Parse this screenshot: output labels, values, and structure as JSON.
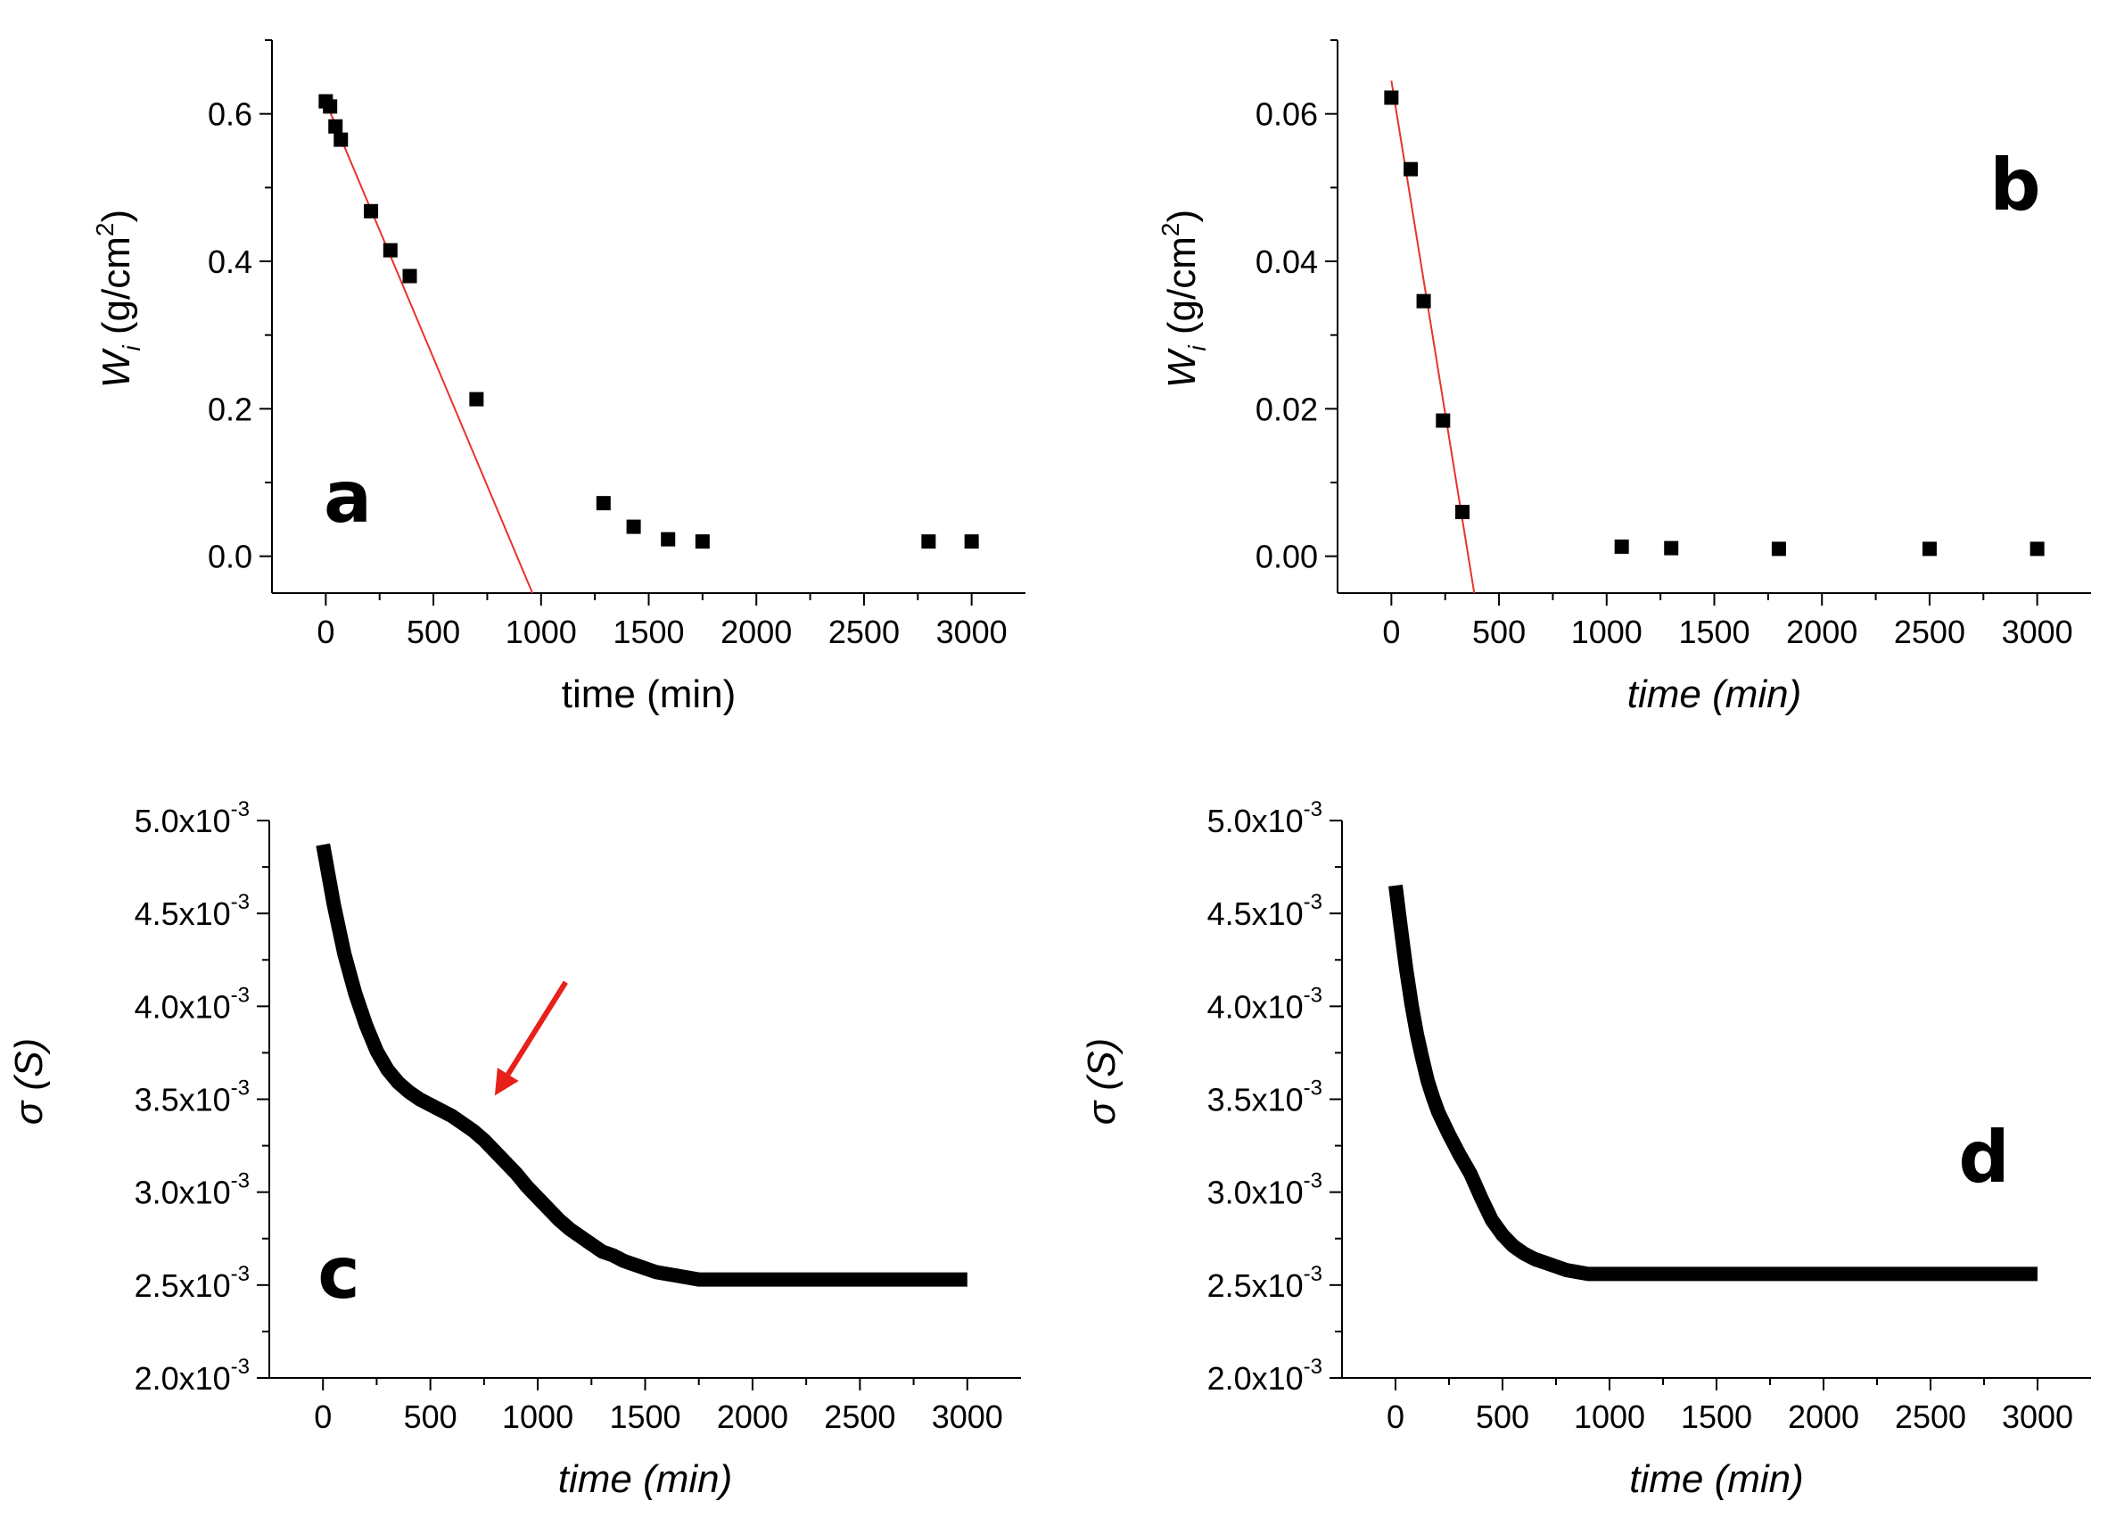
{
  "chart_data": [
    {
      "id": "a",
      "type": "scatter",
      "panel_label": "a",
      "xlabel": "time (min)",
      "ylabel_main": "W",
      "ylabel_sub": "i",
      "ylabel_unit": " (g/cm",
      "ylabel_sup": "2",
      "ylabel_close": ")",
      "xlim": [
        -250,
        3250
      ],
      "ylim": [
        -0.05,
        0.7
      ],
      "xticks": [
        0,
        500,
        1000,
        1500,
        2000,
        2500,
        3000
      ],
      "xtick_labels": [
        "0",
        "500",
        "1000",
        "1500",
        "2000",
        "2500",
        "3000"
      ],
      "yticks": [
        0.0,
        0.2,
        0.4,
        0.6
      ],
      "ytick_labels": [
        "0.0",
        "0.2",
        "0.4",
        "0.6"
      ],
      "points": {
        "x": [
          0,
          20,
          45,
          70,
          210,
          300,
          390,
          700,
          1290,
          1430,
          1590,
          1750,
          2800,
          3000
        ],
        "y": [
          0.617,
          0.61,
          0.583,
          0.565,
          0.468,
          0.415,
          0.38,
          0.213,
          0.072,
          0.04,
          0.023,
          0.02,
          0.02,
          0.02
        ]
      },
      "fit_line": {
        "color": "#e8332b",
        "x": [
          80,
          940
        ],
        "y": [
          0.56,
          0.0
        ]
      },
      "fit_line_extended": {
        "x": [
          80,
          960
        ],
        "y": [
          0.56,
          -0.05
        ]
      },
      "fit_line_start": {
        "x": [
          0,
          80
        ],
        "y": [
          0.617,
          0.56
        ]
      }
    },
    {
      "id": "b",
      "type": "scatter",
      "panel_label": "b",
      "xlabel": "time (min)",
      "ylabel_main": "W",
      "ylabel_sub": "i",
      "ylabel_unit": " (g/cm",
      "ylabel_sup": "2",
      "ylabel_close": ")",
      "xlim": [
        -250,
        3250
      ],
      "ylim": [
        -0.005,
        0.07
      ],
      "xticks": [
        0,
        500,
        1000,
        1500,
        2000,
        2500,
        3000
      ],
      "xtick_labels": [
        "0",
        "500",
        "1000",
        "1500",
        "2000",
        "2500",
        "3000"
      ],
      "yticks": [
        0.0,
        0.02,
        0.04,
        0.06
      ],
      "ytick_labels": [
        "0.00",
        "0.02",
        "0.04",
        "0.06"
      ],
      "points": {
        "x": [
          0,
          90,
          150,
          240,
          330,
          1070,
          1300,
          1800,
          2500,
          3000
        ],
        "y": [
          0.0622,
          0.0525,
          0.0346,
          0.0184,
          0.006,
          0.0013,
          0.0011,
          0.001,
          0.001,
          0.001
        ]
      },
      "fit_line": {
        "color": "#e8332b",
        "x": [
          0,
          385
        ],
        "y": [
          0.0645,
          -0.005
        ]
      }
    },
    {
      "id": "c",
      "type": "line",
      "panel_label": "c",
      "xlabel": "time (min)",
      "ylabel": "σ (S)",
      "xlim": [
        -250,
        3250
      ],
      "ylim": [
        0.002,
        0.005
      ],
      "xticks": [
        0,
        500,
        1000,
        1500,
        2000,
        2500,
        3000
      ],
      "xtick_labels": [
        "0",
        "500",
        "1000",
        "1500",
        "2000",
        "2500",
        "3000"
      ],
      "yticks": [
        0.002,
        0.0025,
        0.003,
        0.0035,
        0.004,
        0.0045,
        0.005
      ],
      "ytick_mantissa": [
        "2.0",
        "2.5",
        "3.0",
        "3.5",
        "4.0",
        "4.5",
        "5.0"
      ],
      "ytick_base": "x10",
      "ytick_exp": "-3",
      "series": {
        "x": [
          0,
          50,
          100,
          150,
          200,
          250,
          300,
          350,
          400,
          450,
          500,
          550,
          600,
          650,
          700,
          750,
          800,
          850,
          900,
          950,
          1000,
          1050,
          1100,
          1150,
          1200,
          1250,
          1300,
          1350,
          1400,
          1450,
          1500,
          1550,
          1600,
          1650,
          1700,
          1750,
          1800,
          2000,
          2500,
          3000
        ],
        "y": [
          0.00487,
          0.00455,
          0.00428,
          0.00407,
          0.0039,
          0.00376,
          0.00366,
          0.00359,
          0.00354,
          0.0035,
          0.00347,
          0.00344,
          0.00341,
          0.00337,
          0.00333,
          0.00328,
          0.00322,
          0.00316,
          0.0031,
          0.00303,
          0.00297,
          0.00291,
          0.00285,
          0.0028,
          0.00276,
          0.00272,
          0.00268,
          0.00266,
          0.00263,
          0.00261,
          0.00259,
          0.00257,
          0.00256,
          0.00255,
          0.00254,
          0.00253,
          0.00253,
          0.00253,
          0.00253,
          0.00253
        ]
      },
      "arrow": {
        "color": "#e8201a",
        "from": [
          1130,
          0.00413
        ],
        "to": [
          800,
          0.00352
        ]
      }
    },
    {
      "id": "d",
      "type": "line",
      "panel_label": "d",
      "xlabel": "time (min)",
      "ylabel": "σ (S)",
      "xlim": [
        -250,
        3250
      ],
      "ylim": [
        0.002,
        0.005
      ],
      "xticks": [
        0,
        500,
        1000,
        1500,
        2000,
        2500,
        3000
      ],
      "xtick_labels": [
        "0",
        "500",
        "1000",
        "1500",
        "2000",
        "2500",
        "3000"
      ],
      "yticks": [
        0.002,
        0.0025,
        0.003,
        0.0035,
        0.004,
        0.0045,
        0.005
      ],
      "ytick_mantissa": [
        "2.0",
        "2.5",
        "3.0",
        "3.5",
        "4.0",
        "4.5",
        "5.0"
      ],
      "ytick_base": "x10",
      "ytick_exp": "-3",
      "series": {
        "x": [
          0,
          25,
          50,
          75,
          100,
          125,
          150,
          175,
          200,
          250,
          300,
          350,
          400,
          450,
          500,
          550,
          600,
          650,
          700,
          750,
          800,
          850,
          900,
          1000,
          1500,
          2000,
          2500,
          3000
        ],
        "y": [
          0.00465,
          0.00442,
          0.0042,
          0.00401,
          0.00385,
          0.00372,
          0.0036,
          0.00351,
          0.00343,
          0.00331,
          0.0032,
          0.0031,
          0.00297,
          0.00285,
          0.00277,
          0.00271,
          0.00267,
          0.00264,
          0.00262,
          0.0026,
          0.00258,
          0.00257,
          0.00256,
          0.00256,
          0.00256,
          0.00256,
          0.00256,
          0.00256
        ]
      }
    }
  ]
}
